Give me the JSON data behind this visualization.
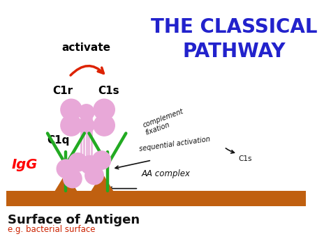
{
  "bg_color": "#ffffff",
  "title_line1": "THE CLASSICAL",
  "title_line2": "PATHWAY",
  "title_color": "#2222cc",
  "title_fontsize": 20,
  "surface_color": "#c06010",
  "antigen_label": "Surface of Antigen",
  "antigen_sub": "e.g. bacterial surface",
  "antigen_color": "#111111",
  "antigen_sub_color": "#cc2200",
  "igg_color": "#22aa22",
  "pink_color": "#e8a8d8",
  "red_arrow_color": "#dd2200",
  "label_c1r": "C1r",
  "label_c1s": "C1s",
  "label_c1q": "C1q",
  "label_activate": "activate",
  "label_igg": "IgG",
  "label_aa": "AA complex",
  "handwriting_color": "#111111",
  "complement_text": "complement\nfixation",
  "sequential_text": "sequential activation",
  "c1s_arrow_text": "C1s"
}
